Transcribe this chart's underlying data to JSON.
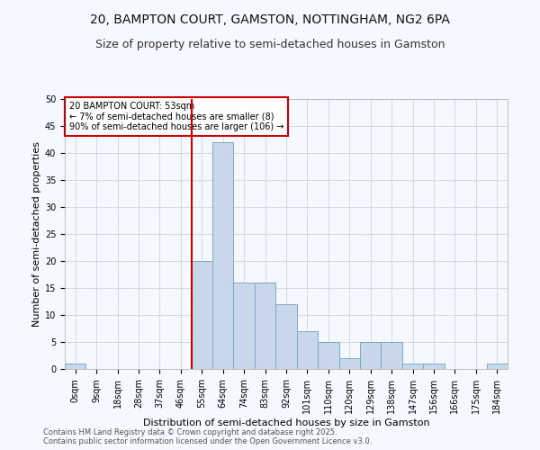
{
  "title_line1": "20, BAMPTON COURT, GAMSTON, NOTTINGHAM, NG2 6PA",
  "title_line2": "Size of property relative to semi-detached houses in Gamston",
  "xlabel": "Distribution of semi-detached houses by size in Gamston",
  "ylabel": "Number of semi-detached properties",
  "categories": [
    "0sqm",
    "9sqm",
    "18sqm",
    "28sqm",
    "37sqm",
    "46sqm",
    "55sqm",
    "64sqm",
    "74sqm",
    "83sqm",
    "92sqm",
    "101sqm",
    "110sqm",
    "120sqm",
    "129sqm",
    "138sqm",
    "147sqm",
    "156sqm",
    "166sqm",
    "175sqm",
    "184sqm"
  ],
  "values": [
    1,
    0,
    0,
    0,
    0,
    0,
    20,
    42,
    16,
    16,
    12,
    7,
    5,
    2,
    5,
    5,
    1,
    1,
    0,
    0,
    1
  ],
  "bar_color": "#c8d8ea",
  "bar_edge_color": "#7aaac8",
  "vline_color": "#cc0000",
  "vline_bar_index": 6,
  "annotation_text": "20 BAMPTON COURT: 53sqm\n← 7% of semi-detached houses are smaller (8)\n90% of semi-detached houses are larger (106) →",
  "annotation_box_color": "#ffffff",
  "annotation_box_edge": "#cc0000",
  "ylim": [
    0,
    50
  ],
  "yticks": [
    0,
    5,
    10,
    15,
    20,
    25,
    30,
    35,
    40,
    45,
    50
  ],
  "footer_line1": "Contains HM Land Registry data © Crown copyright and database right 2025.",
  "footer_line2": "Contains public sector information licensed under the Open Government Licence v3.0.",
  "bg_color": "#f5f8ff",
  "grid_color": "#c8d4e8",
  "title_fontsize": 10,
  "subtitle_fontsize": 9,
  "tick_fontsize": 7,
  "ylabel_fontsize": 8,
  "xlabel_fontsize": 8
}
